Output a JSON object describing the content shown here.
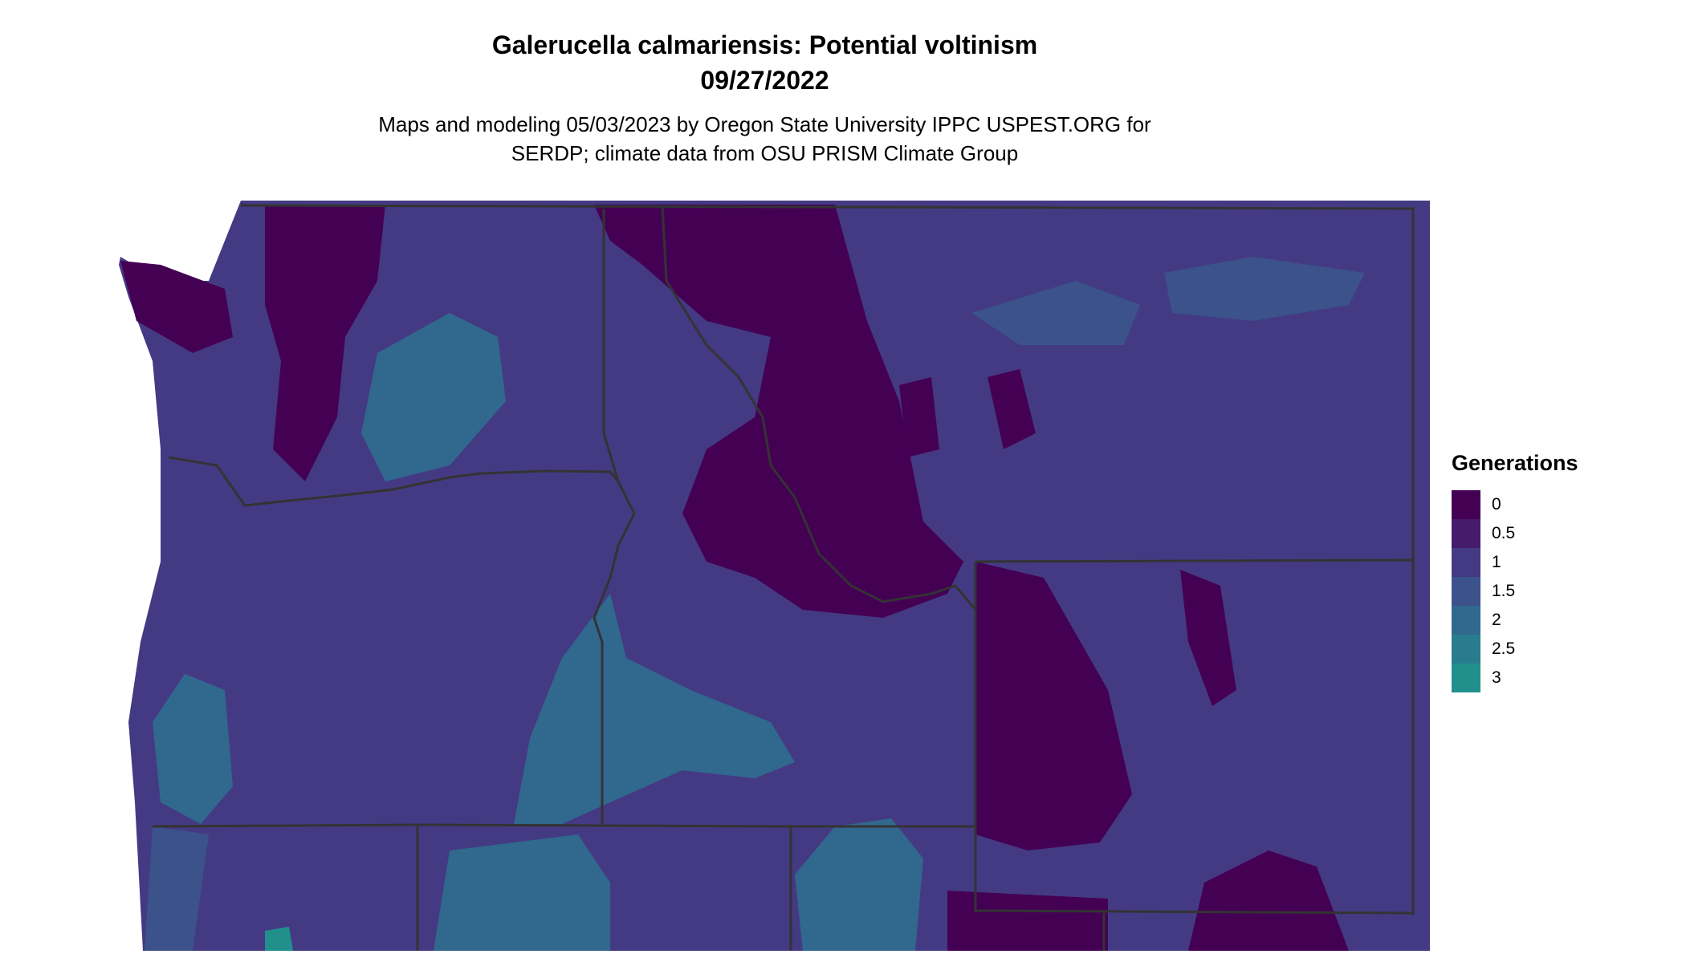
{
  "title": "Galerucella calmariensis: Potential voltinism",
  "date": "09/27/2022",
  "subtitle_line1": "Maps and modeling 05/03/2023 by Oregon State University IPPC USPEST.ORG for",
  "subtitle_line2": "SERDP; climate data from OSU PRISM Climate Group",
  "legend": {
    "title": "Generations",
    "items": [
      {
        "label": "0",
        "color": "#440154"
      },
      {
        "label": "0.5",
        "color": "#471b6b"
      },
      {
        "label": "1",
        "color": "#443a83"
      },
      {
        "label": "1.5",
        "color": "#3b528b"
      },
      {
        "label": "2",
        "color": "#31688e"
      },
      {
        "label": "2.5",
        "color": "#287c8e"
      },
      {
        "label": "3",
        "color": "#21908c"
      }
    ]
  },
  "map": {
    "region": "Pacific Northwest: WA, OR, ID, MT, WY",
    "border_color": "#333333"
  }
}
